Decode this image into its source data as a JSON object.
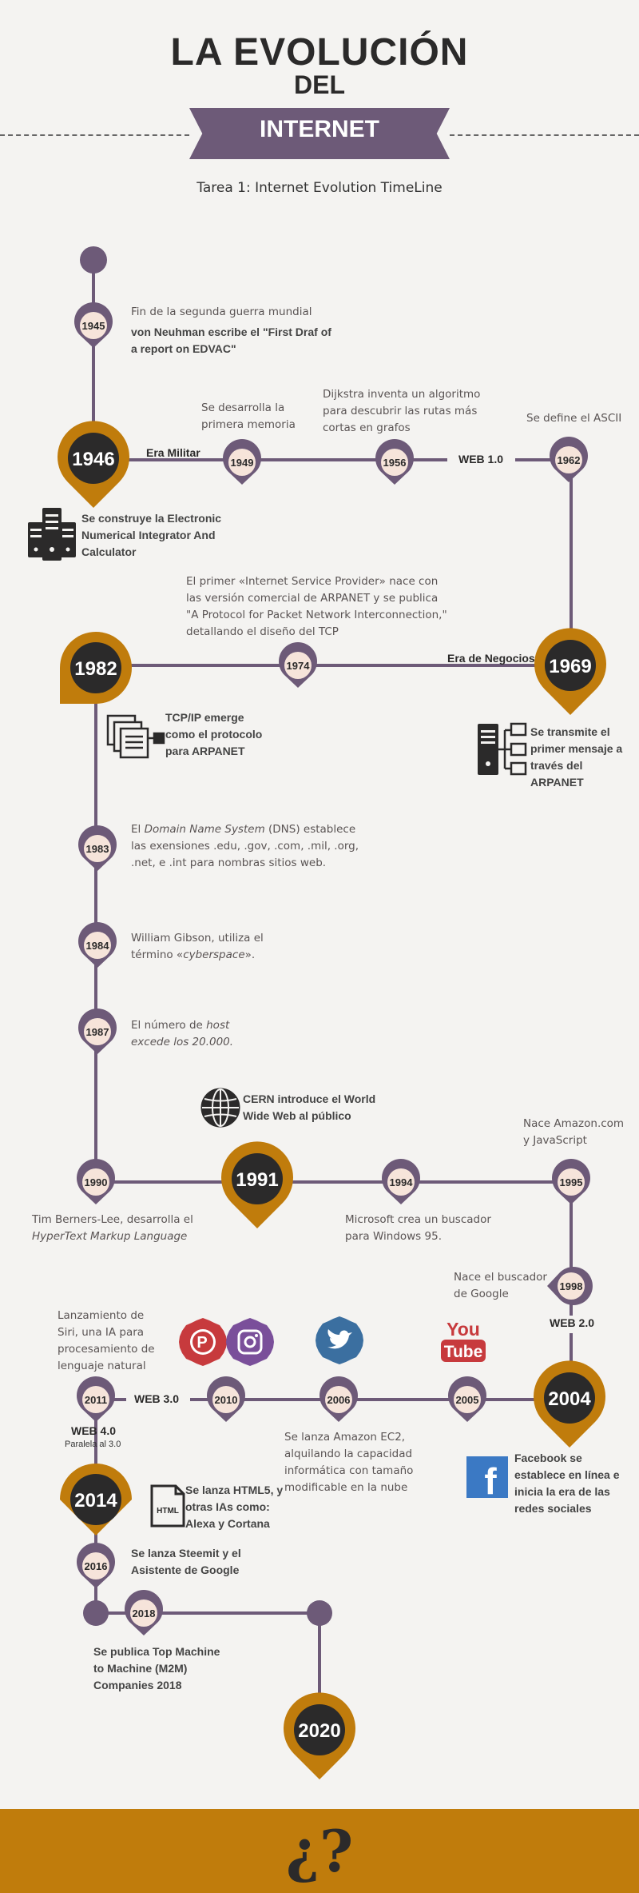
{
  "header": {
    "title_line1": "LA EVOLUCIÓN",
    "title_line2": "DEL",
    "title_banner": "INTERNET",
    "subtitle": "Tarea 1: Internet Evolution TimeLine"
  },
  "colors": {
    "line": "#6d5a78",
    "gold": "#c07c0c",
    "dark": "#2b2a2a",
    "node_fill": "#f6e4da",
    "background": "#f4f3f1"
  },
  "years": {
    "y1945": "1945",
    "y1946": "1946",
    "y1949": "1949",
    "y1956": "1956",
    "y1962": "1962",
    "y1969": "1969",
    "y1974": "1974",
    "y1982": "1982",
    "y1983": "1983",
    "y1984": "1984",
    "y1987": "1987",
    "y1990": "1990",
    "y1991": "1991",
    "y1994": "1994",
    "y1995": "1995",
    "y1998": "1998",
    "y2004": "2004",
    "y2005": "2005",
    "y2006": "2006",
    "y2010": "2010",
    "y2011": "2011",
    "y2014": "2014",
    "y2016": "2016",
    "y2018": "2018",
    "y2020": "2020"
  },
  "eras": {
    "militar": "Era Militar",
    "web1": "WEB 1.0",
    "negocios": "Era de Negocios",
    "web2": "WEB 2.0",
    "web3": "WEB 3.0",
    "web4": "WEB 4.0",
    "web4_note": "Paralela al 3.0"
  },
  "events": {
    "e1945a": "Fin de la segunda guerra mundial",
    "e1945b": "von Neuhman escribe el \"First Draf of a report on EDVAC\"",
    "e1946": "Se construye la Electronic Numerical Integrator And Calculator",
    "e1949": "Se desarrolla la primera memoria",
    "e1956": "Dijkstra inventa un algoritmo para descubrir las rutas más cortas en grafos",
    "e1962": "Se define el ASCII",
    "e1974": "El primer «Internet Service Provider» nace con las versión comercial de ARPANET y se publica \"A Protocol for Packet Network Interconnection,\" detallando el diseño del TCP",
    "e1969": "Se transmite el primer mensaje a través del ARPANET",
    "e1982": "TCP/IP emerge como el protocolo para ARPANET",
    "e1983_pre": "El ",
    "e1983_em": "Domain Name System",
    "e1983_post": " (DNS) establece las exensiones .edu, .gov, .com, .mil, .org, .net, e .int para nombras sitios web.",
    "e1984_pre": "William Gibson, utiliza el término «",
    "e1984_em": "cyberspace",
    "e1984_post": "».",
    "e1987_pre": "El número de ",
    "e1987_em": "host excede los 20.000.",
    "e1991": "CERN introduce el World Wide Web al público",
    "e1990_pre": "Tim Berners-Lee, desarrolla el ",
    "e1990_em": "HyperText Markup Language",
    "e1994": "Microsoft crea un buscador para Windows 95.",
    "e1995": "Nace Amazon.com y JavaScript",
    "e1998": "Nace el buscador de Google",
    "e2004": "Facebook se establece en línea e inicia la era de las redes sociales",
    "e2006": "Se lanza Amazon EC2, alquilando la capacidad informática con tamaño modificable en la nube",
    "e2011": "Lanzamiento de Siri, una IA para procesamiento de lenguaje natural",
    "e2014": "Se lanza HTML5, y otras IAs como: Alexa y Cortana",
    "e2016": "Se lanza Steemit y el Asistente de Google",
    "e2018": "Se publica Top Machine to Machine (M2M) Companies 2018"
  },
  "icons": {
    "server": "server-icon",
    "documents": "documents-icon",
    "network": "network-computers-icon",
    "globe": "globe-icon",
    "pinterest": "pinterest-icon",
    "instagram": "instagram-icon",
    "twitter": "twitter-icon",
    "youtube": "youtube-icon",
    "facebook": "facebook-icon",
    "html": "html-file-icon"
  },
  "brand_text": {
    "youtube_you": "You",
    "youtube_tube": "Tube",
    "facebook_f": "f",
    "html_label": "HTML"
  },
  "footer": {
    "symbol": "¿?"
  }
}
